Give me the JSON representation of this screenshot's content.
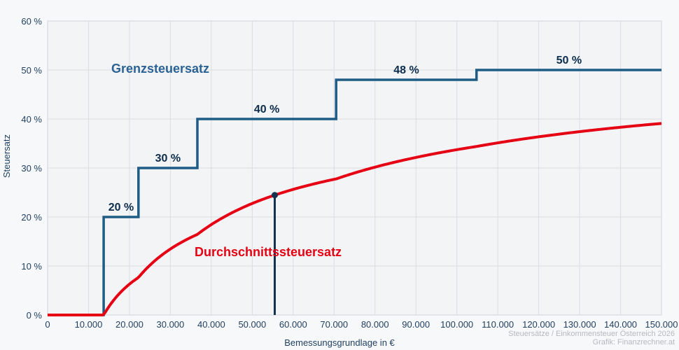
{
  "colors": {
    "background": "#f7f8f9",
    "plot_background": "#f3f4f6",
    "grid": "#dcdde0",
    "plot_border": "#d3d5d9",
    "marginal_line": "#1f5c85",
    "marginal_step_label": "#0c2d4d",
    "marginal_title": "#2a6394",
    "average_line": "#e60013",
    "marker_line": "#15324e",
    "tick_label": "#1e3d5f",
    "attribution": "#b5b8be"
  },
  "attribution": {
    "line1": "Steuersätze / Einkommensteuer Österreich 2026",
    "line2": "Grafik: Finanzrechner.at"
  },
  "chart_data": {
    "type": "line",
    "title": "",
    "xlabel": "Bemessungsgrundlage in €",
    "ylabel": "Steuersatz",
    "xlim": [
      0,
      150000
    ],
    "ylim": [
      0,
      60
    ],
    "grid": true,
    "legend_position": "labels-inside-plot",
    "x_ticks": [
      {
        "value": 0,
        "label": "0"
      },
      {
        "value": 10000,
        "label": "10.000"
      },
      {
        "value": 20000,
        "label": "20.000"
      },
      {
        "value": 30000,
        "label": "30.000"
      },
      {
        "value": 40000,
        "label": "40.000"
      },
      {
        "value": 50000,
        "label": "50.000"
      },
      {
        "value": 60000,
        "label": "60.000"
      },
      {
        "value": 70000,
        "label": "70.000"
      },
      {
        "value": 80000,
        "label": "80.000"
      },
      {
        "value": 90000,
        "label": "90.000"
      },
      {
        "value": 100000,
        "label": "100.000"
      },
      {
        "value": 110000,
        "label": "110.000"
      },
      {
        "value": 120000,
        "label": "120.000"
      },
      {
        "value": 130000,
        "label": "130.000"
      },
      {
        "value": 140000,
        "label": "140.000"
      },
      {
        "value": 150000,
        "label": "150.000"
      }
    ],
    "y_ticks": [
      {
        "value": 0,
        "label": "0 %"
      },
      {
        "value": 10,
        "label": "10 %"
      },
      {
        "value": 20,
        "label": "20 %"
      },
      {
        "value": 30,
        "label": "30 %"
      },
      {
        "value": 40,
        "label": "40 %"
      },
      {
        "value": 50,
        "label": "50 %"
      },
      {
        "value": 60,
        "label": "60 %"
      }
    ],
    "series": [
      {
        "name": "Grenzsteuersatz",
        "type": "step",
        "color": "#1f5c85",
        "bracket_thresholds_eur": [
          13700,
          22200,
          36600,
          70500,
          104800
        ],
        "rates_pct": [
          0,
          20,
          30,
          40,
          48,
          50
        ],
        "step_labels": [
          "20 %",
          "30 %",
          "40 %",
          "48 %",
          "50 %"
        ]
      },
      {
        "name": "Durchschnittssteuersatz",
        "type": "line",
        "color": "#e60013",
        "derivation": "cumulative tax from marginal brackets divided by assessment base",
        "points_pct_every_10k": [
          [
            0,
            0
          ],
          [
            10000,
            0
          ],
          [
            20000,
            6.3
          ],
          [
            30000,
            13.5
          ],
          [
            40000,
            18.5
          ],
          [
            50000,
            22.8
          ],
          [
            60000,
            25.6
          ],
          [
            70000,
            27.7
          ],
          [
            80000,
            30.2
          ],
          [
            90000,
            32.2
          ],
          [
            100000,
            33.7
          ],
          [
            110000,
            35.1
          ],
          [
            120000,
            36.4
          ],
          [
            130000,
            37.4
          ],
          [
            140000,
            38.3
          ],
          [
            150000,
            39.1
          ]
        ]
      }
    ],
    "marker": {
      "x": 55500,
      "value_pct": 24.4,
      "color": "#15324e"
    }
  }
}
